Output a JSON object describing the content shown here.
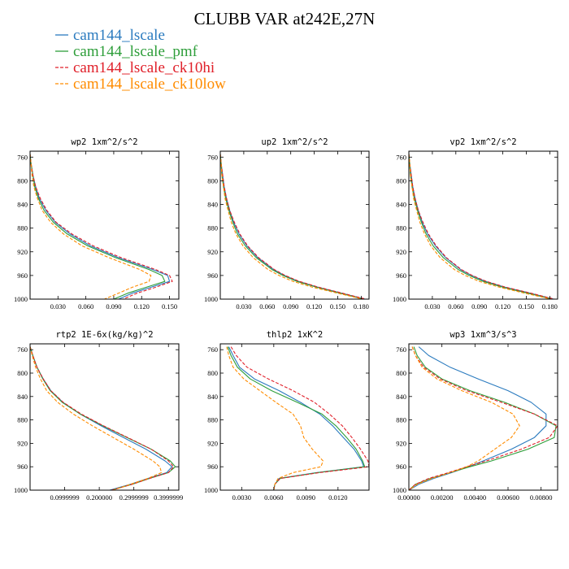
{
  "title": "CLUBB VAR at242E,27N",
  "legend": [
    {
      "name": "cam144_lscale",
      "color": "#2b7bbf",
      "dash": "solid"
    },
    {
      "name": "cam144_lscale_pmf",
      "color": "#2e9e3a",
      "dash": "solid"
    },
    {
      "name": "cam144_lscale_ck10hi",
      "color": "#e0202a",
      "dash": "dash"
    },
    {
      "name": "cam144_lscale_ck10low",
      "color": "#ff8c00",
      "dash": "dash"
    }
  ],
  "chart_data": [
    {
      "type": "line",
      "title": "wp2  1xm^2/s^2",
      "ylim": [
        1000,
        750
      ],
      "yticks": [
        "760",
        "800",
        "840",
        "880",
        "920",
        "960",
        "1000"
      ],
      "xlim": [
        0.0,
        0.16
      ],
      "xticks": [
        0.03,
        0.06,
        0.09,
        0.12,
        0.15
      ],
      "xtick_labels": [
        "0.030",
        "0.060",
        "0.090",
        "0.120",
        "0.150"
      ],
      "y": [
        755,
        770,
        790,
        810,
        830,
        850,
        870,
        890,
        910,
        930,
        950,
        960,
        970,
        980,
        990,
        1000
      ],
      "series": [
        {
          "name": "cam144_lscale",
          "values": [
            0.0,
            0.001,
            0.003,
            0.006,
            0.01,
            0.017,
            0.027,
            0.043,
            0.065,
            0.095,
            0.132,
            0.148,
            0.15,
            0.13,
            0.11,
            0.095
          ]
        },
        {
          "name": "cam144_lscale_pmf",
          "values": [
            0.0,
            0.001,
            0.003,
            0.005,
            0.009,
            0.015,
            0.025,
            0.04,
            0.062,
            0.092,
            0.128,
            0.142,
            0.145,
            0.125,
            0.105,
            0.09
          ]
        },
        {
          "name": "cam144_lscale_ck10hi",
          "values": [
            0.0,
            0.001,
            0.003,
            0.006,
            0.011,
            0.018,
            0.028,
            0.045,
            0.068,
            0.098,
            0.135,
            0.15,
            0.153,
            0.135,
            0.115,
            0.1
          ]
        },
        {
          "name": "cam144_lscale_ck10low",
          "values": [
            0.0,
            0.001,
            0.002,
            0.004,
            0.008,
            0.013,
            0.022,
            0.036,
            0.056,
            0.085,
            0.118,
            0.13,
            0.128,
            0.11,
            0.095,
            0.08
          ]
        }
      ]
    },
    {
      "type": "line",
      "title": "up2  1xm^2/s^2",
      "ylim": [
        1000,
        750
      ],
      "yticks": [
        "760",
        "800",
        "840",
        "880",
        "920",
        "960",
        "1000"
      ],
      "xlim": [
        0.0,
        0.19
      ],
      "xticks": [
        0.03,
        0.06,
        0.09,
        0.12,
        0.15,
        0.18
      ],
      "xtick_labels": [
        "0.030",
        "0.060",
        "0.090",
        "0.120",
        "0.150",
        "0.180"
      ],
      "y": [
        755,
        770,
        790,
        810,
        830,
        850,
        870,
        890,
        910,
        930,
        950,
        960,
        970,
        980,
        990,
        1000
      ],
      "series": [
        {
          "name": "cam144_lscale",
          "values": [
            0.0,
            0.001,
            0.003,
            0.005,
            0.008,
            0.012,
            0.017,
            0.024,
            0.034,
            0.048,
            0.068,
            0.082,
            0.1,
            0.125,
            0.155,
            0.185
          ]
        },
        {
          "name": "cam144_lscale_pmf",
          "values": [
            0.0,
            0.001,
            0.002,
            0.004,
            0.007,
            0.011,
            0.016,
            0.022,
            0.032,
            0.046,
            0.066,
            0.08,
            0.098,
            0.123,
            0.153,
            0.183
          ]
        },
        {
          "name": "cam144_lscale_ck10hi",
          "values": [
            0.0,
            0.001,
            0.003,
            0.005,
            0.008,
            0.012,
            0.018,
            0.025,
            0.035,
            0.049,
            0.069,
            0.083,
            0.101,
            0.126,
            0.156,
            0.186
          ]
        },
        {
          "name": "cam144_lscale_ck10low",
          "values": [
            0.0,
            0.001,
            0.002,
            0.004,
            0.006,
            0.01,
            0.014,
            0.02,
            0.029,
            0.042,
            0.061,
            0.075,
            0.093,
            0.118,
            0.15,
            0.182
          ]
        }
      ]
    },
    {
      "type": "line",
      "title": "vp2  1xm^2/s^2",
      "ylim": [
        1000,
        750
      ],
      "yticks": [
        "760",
        "800",
        "840",
        "880",
        "920",
        "960",
        "1000"
      ],
      "xlim": [
        0.0,
        0.19
      ],
      "xticks": [
        0.03,
        0.06,
        0.09,
        0.12,
        0.15,
        0.18
      ],
      "xtick_labels": [
        "0.030",
        "0.060",
        "0.090",
        "0.120",
        "0.150",
        "0.180"
      ],
      "y": [
        755,
        770,
        790,
        810,
        830,
        850,
        870,
        890,
        910,
        930,
        950,
        960,
        970,
        980,
        990,
        1000
      ],
      "series": [
        {
          "name": "cam144_lscale",
          "values": [
            0.0,
            0.001,
            0.003,
            0.005,
            0.008,
            0.012,
            0.017,
            0.024,
            0.034,
            0.047,
            0.066,
            0.08,
            0.098,
            0.123,
            0.155,
            0.185
          ]
        },
        {
          "name": "cam144_lscale_pmf",
          "values": [
            0.0,
            0.001,
            0.002,
            0.004,
            0.007,
            0.011,
            0.016,
            0.022,
            0.031,
            0.044,
            0.063,
            0.077,
            0.095,
            0.12,
            0.152,
            0.183
          ]
        },
        {
          "name": "cam144_lscale_ck10hi",
          "values": [
            0.0,
            0.001,
            0.003,
            0.005,
            0.008,
            0.012,
            0.018,
            0.025,
            0.035,
            0.048,
            0.067,
            0.081,
            0.099,
            0.124,
            0.156,
            0.186
          ]
        },
        {
          "name": "cam144_lscale_ck10low",
          "values": [
            0.0,
            0.001,
            0.002,
            0.004,
            0.006,
            0.01,
            0.014,
            0.02,
            0.028,
            0.04,
            0.058,
            0.072,
            0.09,
            0.116,
            0.148,
            0.182
          ]
        }
      ]
    },
    {
      "type": "line",
      "title": "rtp2  1E-6x(kg/kg)^2",
      "ylim": [
        1000,
        750
      ],
      "yticks": [
        "760",
        "800",
        "840",
        "880",
        "920",
        "960",
        "1000"
      ],
      "xlim": [
        0.0,
        0.43
      ],
      "xticks": [
        0.1,
        0.2,
        0.3,
        0.4
      ],
      "xtick_labels": [
        "0.0999999",
        "0.200000",
        "0.2999999",
        "0.3999999"
      ],
      "y": [
        755,
        770,
        790,
        810,
        830,
        850,
        870,
        890,
        910,
        930,
        950,
        960,
        970,
        980,
        990,
        1000
      ],
      "series": [
        {
          "name": "cam144_lscale",
          "values": [
            0.0,
            0.008,
            0.02,
            0.038,
            0.06,
            0.095,
            0.145,
            0.205,
            0.27,
            0.335,
            0.39,
            0.41,
            0.395,
            0.34,
            0.29,
            0.23
          ]
        },
        {
          "name": "cam144_lscale_pmf",
          "values": [
            0.0,
            0.008,
            0.02,
            0.037,
            0.058,
            0.093,
            0.145,
            0.21,
            0.28,
            0.35,
            0.405,
            0.42,
            0.4,
            0.345,
            0.295,
            0.235
          ]
        },
        {
          "name": "cam144_lscale_ck10hi",
          "values": [
            0.0,
            0.008,
            0.02,
            0.038,
            0.06,
            0.096,
            0.148,
            0.212,
            0.282,
            0.35,
            0.4,
            0.415,
            0.4,
            0.345,
            0.295,
            0.235
          ]
        },
        {
          "name": "cam144_lscale_ck10low",
          "values": [
            0.0,
            0.006,
            0.016,
            0.03,
            0.048,
            0.08,
            0.125,
            0.18,
            0.24,
            0.3,
            0.355,
            0.375,
            0.38,
            0.34,
            0.29,
            0.24
          ]
        }
      ]
    },
    {
      "type": "line",
      "title": "thlp2  1xK^2",
      "ylim": [
        1000,
        750
      ],
      "yticks": [
        "760",
        "800",
        "840",
        "880",
        "920",
        "960",
        "1000"
      ],
      "xlim": [
        0.001,
        0.0149
      ],
      "xticks": [
        0.003,
        0.006,
        0.009,
        0.012
      ],
      "xtick_labels": [
        "0.0030",
        "0.0060",
        "0.0090",
        "0.0120"
      ],
      "y": [
        755,
        770,
        790,
        810,
        830,
        850,
        870,
        890,
        910,
        930,
        950,
        960,
        970,
        980,
        990,
        1000
      ],
      "series": [
        {
          "name": "cam144_lscale",
          "values": [
            0.0018,
            0.0022,
            0.0028,
            0.0042,
            0.0065,
            0.0085,
            0.0103,
            0.0115,
            0.0125,
            0.0135,
            0.0142,
            0.0144,
            0.01,
            0.0065,
            0.0061,
            0.006
          ]
        },
        {
          "name": "cam144_lscale_pmf",
          "values": [
            0.0017,
            0.002,
            0.0026,
            0.0038,
            0.0058,
            0.0082,
            0.0105,
            0.0118,
            0.0128,
            0.0137,
            0.0143,
            0.0145,
            0.0101,
            0.0066,
            0.0061,
            0.006
          ]
        },
        {
          "name": "cam144_lscale_ck10hi",
          "values": [
            0.002,
            0.0025,
            0.0035,
            0.0055,
            0.0078,
            0.0098,
            0.0112,
            0.0124,
            0.0133,
            0.0141,
            0.0148,
            0.0149,
            0.0103,
            0.0066,
            0.0061,
            0.006
          ]
        },
        {
          "name": "cam144_lscale_ck10low",
          "values": [
            0.0016,
            0.0018,
            0.0022,
            0.0032,
            0.0047,
            0.0062,
            0.0078,
            0.0085,
            0.0088,
            0.0096,
            0.0106,
            0.0104,
            0.0078,
            0.0064,
            0.0061,
            0.006
          ]
        }
      ]
    },
    {
      "type": "line",
      "title": "wp3  1xm^3/s^3",
      "ylim": [
        1000,
        750
      ],
      "yticks": [
        "760",
        "800",
        "840",
        "880",
        "920",
        "960",
        "1000"
      ],
      "xlim": [
        0.0,
        0.009
      ],
      "xticks": [
        0.0,
        0.002,
        0.004,
        0.006,
        0.008
      ],
      "xtick_labels": [
        "0.00000",
        "0.00200",
        "0.00400",
        "0.00600",
        "0.00800"
      ],
      "y": [
        755,
        770,
        790,
        810,
        830,
        850,
        870,
        890,
        910,
        930,
        950,
        960,
        970,
        980,
        990,
        1000
      ],
      "series": [
        {
          "name": "cam144_lscale",
          "values": [
            0.0006,
            0.0012,
            0.0025,
            0.0042,
            0.006,
            0.0074,
            0.0083,
            0.0083,
            0.0076,
            0.0062,
            0.0045,
            0.0036,
            0.0026,
            0.0015,
            0.0006,
            0.0
          ]
        },
        {
          "name": "cam144_lscale_pmf",
          "values": [
            0.0003,
            0.0005,
            0.001,
            0.002,
            0.0037,
            0.0058,
            0.0076,
            0.0089,
            0.0088,
            0.0072,
            0.005,
            0.0037,
            0.0025,
            0.0013,
            0.0004,
            0.0
          ]
        },
        {
          "name": "cam144_lscale_ck10hi",
          "values": [
            0.0002,
            0.0004,
            0.0009,
            0.0019,
            0.0035,
            0.0056,
            0.0076,
            0.009,
            0.0085,
            0.0068,
            0.0047,
            0.0035,
            0.0024,
            0.0012,
            0.0004,
            0.0
          ]
        },
        {
          "name": "cam144_lscale_ck10low",
          "values": [
            0.0002,
            0.0004,
            0.0008,
            0.0017,
            0.0032,
            0.005,
            0.0063,
            0.0067,
            0.0062,
            0.0052,
            0.0042,
            0.0035,
            0.0025,
            0.0014,
            0.0005,
            0.0
          ]
        }
      ]
    }
  ]
}
